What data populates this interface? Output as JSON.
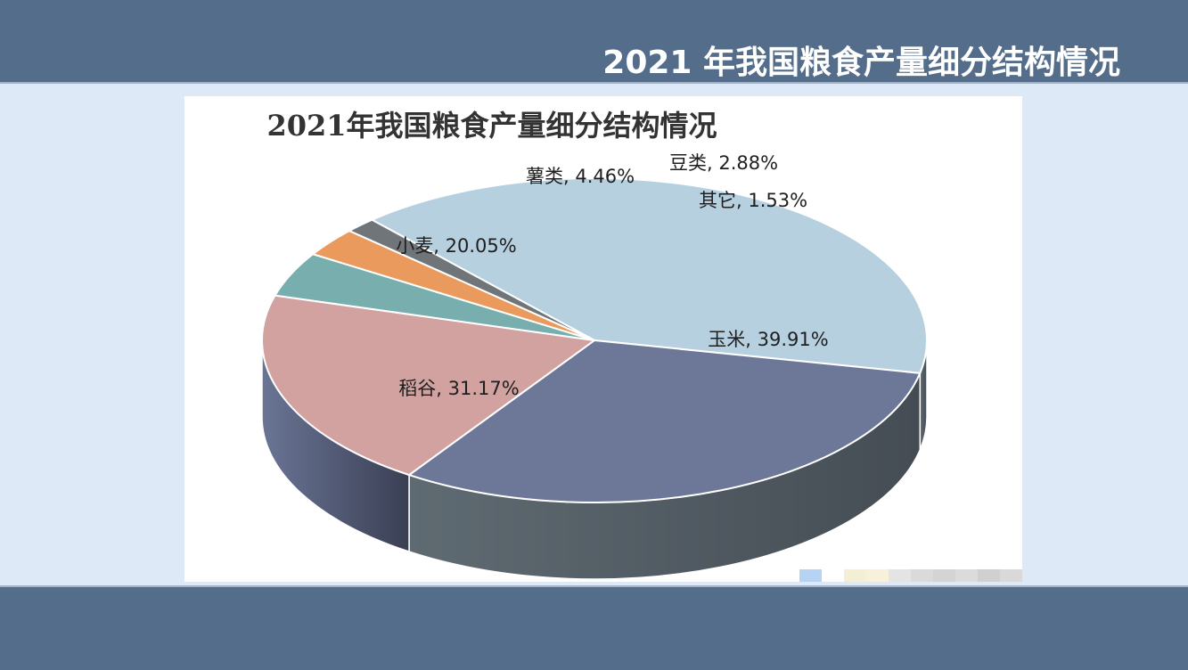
{
  "slide": {
    "title": "2021 年我国粮食产量细分结构情况"
  },
  "chart_data": {
    "type": "pie",
    "title": "2021年我国粮食产量细分结构情况",
    "unit": "%",
    "slices": [
      {
        "name": "玉米",
        "value": 39.91,
        "label": "玉米, 39.91%",
        "color": "#b7d0e0"
      },
      {
        "name": "稻谷",
        "value": 31.17,
        "label": "稻谷, 31.17%",
        "color": "#6d7899"
      },
      {
        "name": "小麦",
        "value": 20.05,
        "label": "小麦, 20.05%",
        "color": "#d2a2a0"
      },
      {
        "name": "薯类",
        "value": 4.46,
        "label": "薯类, 4.46%",
        "color": "#78aeae"
      },
      {
        "name": "豆类",
        "value": 2.88,
        "label": "豆类, 2.88%",
        "color": "#eb9a5d"
      },
      {
        "name": "其它",
        "value": 1.53,
        "label": "其它, 1.53%",
        "color": "#6f7579"
      }
    ],
    "style": "3d-pie",
    "legend": "none"
  },
  "colors": {
    "band": "#536d8b",
    "background": "#dde9f7",
    "panel": "#ffffff"
  }
}
